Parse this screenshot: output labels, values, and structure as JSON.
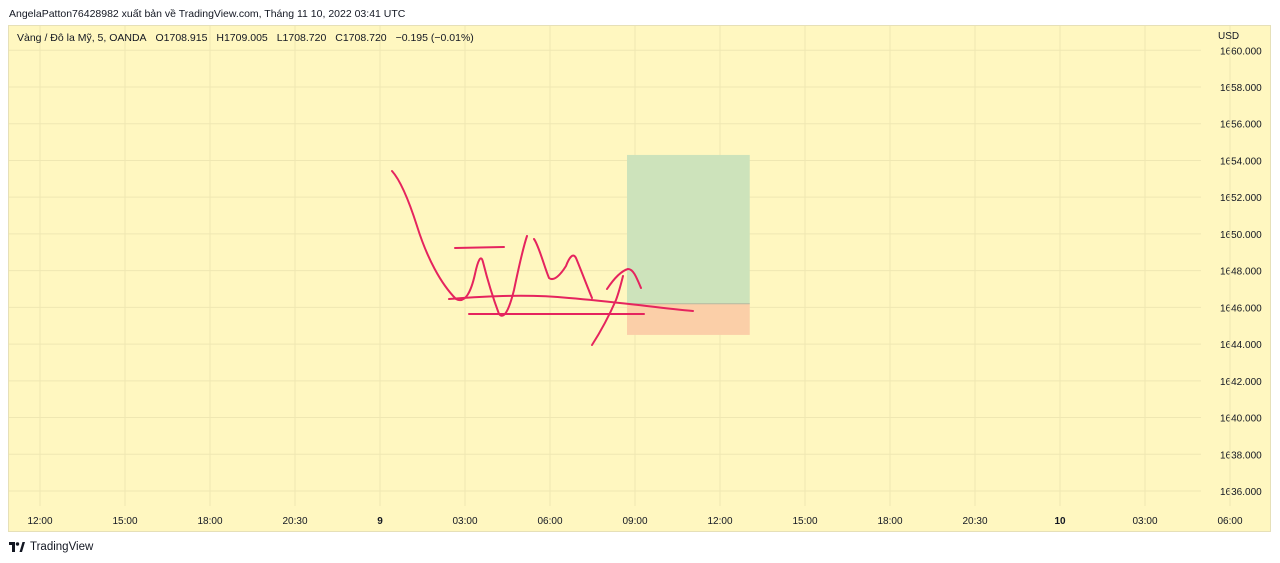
{
  "header": {
    "attribution": "AngelaPatton76428982 xuất bản về TradingView.com, Tháng 11 10, 2022 03:41 UTC"
  },
  "symbol": {
    "name": "Vàng / Đô la Mỹ, 5, OANDA",
    "open": "O1708.915",
    "high": "H1709.005",
    "low": "L1708.720",
    "close": "C1708.720",
    "change": "−0.195 (−0.01%)"
  },
  "axis": {
    "currency": "USD"
  },
  "footer": {
    "brand": "TradingView"
  },
  "colors": {
    "background": "#fff7c0",
    "grid": "#efe7b2",
    "drawing": "#e5245e",
    "target_zone": "#cde3bb",
    "stop_zone": "#fbcfa8",
    "entry_line": "#b7b7a0"
  },
  "chart_data": {
    "type": "line",
    "title": "",
    "xlabel": "",
    "ylabel": "",
    "y_ticks": [
      "1660.000",
      "1658.000",
      "1656.000",
      "1654.000",
      "1652.000",
      "1650.000",
      "1648.000",
      "1646.000",
      "1644.000",
      "1642.000",
      "1640.000",
      "1638.000",
      "1636.000"
    ],
    "y_tick_values": [
      1660,
      1658,
      1656,
      1654,
      1652,
      1650,
      1648,
      1646,
      1644,
      1642,
      1640,
      1638,
      1636
    ],
    "ylim": [
      1635.05,
      1660.1
    ],
    "x_tick_labels": [
      "12:00",
      "15:00",
      "18:00",
      "20:30",
      "9",
      "03:00",
      "06:00",
      "09:00",
      "12:00",
      "15:00",
      "18:00",
      "20:30",
      "10",
      "03:00",
      "06:00"
    ],
    "x_tick_bold": [
      false,
      false,
      false,
      false,
      true,
      false,
      false,
      false,
      false,
      false,
      false,
      false,
      true,
      false,
      false
    ],
    "grid": true,
    "position_tool": {
      "entry": 1646.2,
      "target": 1654.3,
      "stop": 1644.5,
      "start_tick": 7,
      "end_tick": 8.35
    }
  }
}
